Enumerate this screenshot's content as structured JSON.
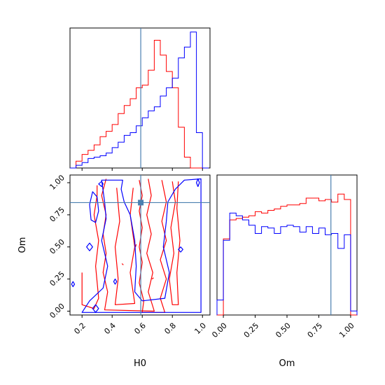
{
  "chart_data": {
    "type": "corner",
    "parameters": [
      "H0",
      "Om"
    ],
    "truths": {
      "H0": 0.59,
      "Om": 0.845
    },
    "truth_color": "#4a7fb0",
    "series": [
      {
        "color": "#ff0000"
      },
      {
        "color": "#0000ff"
      }
    ],
    "panels": [
      {
        "id": "hist-H0",
        "type": "step-histogram",
        "parameter": "H0",
        "xlim": [
          0.12,
          1.05
        ],
        "ylim": [
          0,
          1.03
        ],
        "x_edges": [
          0.12,
          0.16,
          0.2,
          0.24,
          0.28,
          0.32,
          0.36,
          0.4,
          0.44,
          0.48,
          0.52,
          0.56,
          0.6,
          0.64,
          0.68,
          0.72,
          0.76,
          0.8,
          0.84,
          0.88,
          0.92,
          0.96,
          1.0,
          1.04
        ],
        "series_values": [
          [
            0.0,
            0.05,
            0.1,
            0.13,
            0.17,
            0.23,
            0.27,
            0.32,
            0.4,
            0.46,
            0.51,
            0.59,
            0.61,
            0.72,
            0.94,
            0.83,
            0.71,
            0.59,
            0.3,
            0.08,
            0.0,
            0.0,
            0.0
          ],
          [
            0.0,
            0.02,
            0.04,
            0.07,
            0.08,
            0.09,
            0.11,
            0.15,
            0.19,
            0.24,
            0.26,
            0.31,
            0.37,
            0.42,
            0.45,
            0.53,
            0.59,
            0.66,
            0.81,
            0.89,
            1.0,
            0.26,
            0.0
          ]
        ],
        "truth_x": 0.59,
        "xticks": [
          0.2,
          0.4,
          0.6,
          0.8,
          1.0
        ]
      },
      {
        "id": "hist-Om",
        "type": "step-histogram",
        "parameter": "Om",
        "xlabel": "Om",
        "xlim": [
          -0.05,
          1.05
        ],
        "ylim": [
          0,
          1.03
        ],
        "x_edges": [
          -0.05,
          0.0,
          0.05,
          0.1,
          0.15,
          0.2,
          0.25,
          0.3,
          0.35,
          0.4,
          0.45,
          0.5,
          0.55,
          0.6,
          0.65,
          0.7,
          0.75,
          0.8,
          0.85,
          0.9,
          0.95,
          1.0,
          1.05
        ],
        "series_values": [
          [
            0.0,
            0.56,
            0.7,
            0.71,
            0.72,
            0.73,
            0.76,
            0.75,
            0.77,
            0.78,
            0.8,
            0.81,
            0.81,
            0.82,
            0.86,
            0.86,
            0.84,
            0.85,
            0.83,
            0.89,
            0.85,
            0.0
          ],
          [
            0.11,
            0.55,
            0.75,
            0.73,
            0.7,
            0.66,
            0.6,
            0.65,
            0.64,
            0.6,
            0.65,
            0.66,
            0.65,
            0.61,
            0.65,
            0.6,
            0.64,
            0.59,
            0.6,
            0.49,
            0.59,
            0.03
          ]
        ],
        "truth_x": 0.845,
        "xticks": [
          0.0,
          0.25,
          0.5,
          0.75,
          1.0
        ],
        "xtick_labels": [
          "0.00",
          "0.25",
          "0.50",
          "0.75",
          "1.00"
        ]
      },
      {
        "id": "contour-H0-Om",
        "type": "contour",
        "xlabel": "H0",
        "ylabel": "Om",
        "xlim": [
          0.12,
          1.05
        ],
        "ylim": [
          -0.03,
          1.06
        ],
        "xticks": [
          0.2,
          0.4,
          0.6,
          0.8,
          1.0
        ],
        "xtick_labels": [
          "0.2",
          "0.4",
          "0.6",
          "0.8",
          "1.0"
        ],
        "yticks": [
          0.0,
          0.25,
          0.5,
          0.75,
          1.0
        ],
        "ytick_labels": [
          "0.00",
          "0.25",
          "0.50",
          "0.75",
          "1.00"
        ],
        "truth_point": [
          0.59,
          0.845
        ],
        "series_contours": [
          [
            [
              [
                0.36,
                1.03
              ],
              [
                0.33,
                0.9
              ],
              [
                0.36,
                0.75
              ],
              [
                0.34,
                0.6
              ],
              [
                0.36,
                0.45
              ],
              [
                0.34,
                0.3
              ],
              [
                0.37,
                0.15
              ],
              [
                0.35,
                0.01
              ],
              [
                0.68,
                0.0
              ],
              [
                0.64,
                0.15
              ],
              [
                0.67,
                0.3
              ],
              [
                0.63,
                0.45
              ],
              [
                0.66,
                0.6
              ],
              [
                0.63,
                0.75
              ],
              [
                0.66,
                0.9
              ],
              [
                0.64,
                1.03
              ]
            ],
            [
              [
                0.58,
                1.02
              ],
              [
                0.6,
                0.9
              ],
              [
                0.58,
                0.78
              ],
              [
                0.6,
                0.65
              ],
              [
                0.58,
                0.5
              ],
              [
                0.6,
                0.38
              ],
              [
                0.58,
                0.22
              ],
              [
                0.61,
                0.08
              ],
              [
                0.6,
                -0.01
              ],
              [
                0.75,
                -0.01
              ],
              [
                0.72,
                0.1
              ],
              [
                0.76,
                0.25
              ],
              [
                0.72,
                0.4
              ],
              [
                0.76,
                0.55
              ],
              [
                0.73,
                0.7
              ],
              [
                0.76,
                0.85
              ],
              [
                0.73,
                1.02
              ]
            ],
            [
              [
                0.3,
                0.98
              ],
              [
                0.3,
                0.9
              ],
              [
                0.28,
                0.75
              ],
              [
                0.31,
                0.55
              ],
              [
                0.29,
                0.35
              ],
              [
                0.31,
                0.1
              ],
              [
                0.28,
                0.02
              ],
              [
                0.2,
                0.05
              ],
              [
                0.2,
                0.3
              ]
            ],
            [
              [
                0.43,
                0.96
              ],
              [
                0.45,
                0.7
              ],
              [
                0.42,
                0.5
              ],
              [
                0.44,
                0.25
              ],
              [
                0.42,
                0.05
              ],
              [
                0.55,
                0.06
              ],
              [
                0.52,
                0.3
              ],
              [
                0.55,
                0.5
              ],
              [
                0.52,
                0.75
              ],
              [
                0.54,
                0.96
              ]
            ],
            [
              [
                0.8,
                1.01
              ],
              [
                0.82,
                0.85
              ],
              [
                0.79,
                0.65
              ],
              [
                0.81,
                0.45
              ],
              [
                0.78,
                0.25
              ],
              [
                0.8,
                0.05
              ],
              [
                0.84,
                0.05
              ],
              [
                0.83,
                0.3
              ],
              [
                0.85,
                0.55
              ],
              [
                0.83,
                0.8
              ],
              [
                0.84,
                1.01
              ]
            ],
            [
              [
                0.465,
                0.37
              ],
              [
                0.475,
                0.36
              ]
            ],
            [
              [
                0.555,
                0.5
              ],
              [
                0.56,
                0.52
              ]
            ],
            [
              [
                0.665,
                0.25
              ],
              [
                0.675,
                0.26
              ]
            ]
          ],
          [
            [
              [
                0.99,
                1.03
              ],
              [
                0.99,
                -0.01
              ],
              [
                0.2,
                -0.01
              ],
              [
                0.25,
                0.08
              ],
              [
                0.34,
                0.18
              ],
              [
                0.37,
                0.35
              ],
              [
                0.33,
                0.55
              ],
              [
                0.36,
                0.72
              ],
              [
                0.35,
                0.85
              ],
              [
                0.33,
                1.02
              ],
              [
                0.47,
                1.02
              ],
              [
                0.46,
                0.95
              ],
              [
                0.48,
                0.85
              ],
              [
                0.52,
                0.75
              ],
              [
                0.55,
                0.55
              ],
              [
                0.56,
                0.35
              ],
              [
                0.55,
                0.15
              ],
              [
                0.6,
                0.08
              ],
              [
                0.75,
                0.1
              ],
              [
                0.78,
                0.3
              ],
              [
                0.74,
                0.5
              ],
              [
                0.76,
                0.7
              ],
              [
                0.77,
                0.85
              ],
              [
                0.82,
                0.95
              ],
              [
                0.88,
                1.02
              ],
              [
                0.99,
                1.03
              ]
            ],
            [
              [
                0.27,
                0.93
              ],
              [
                0.3,
                0.89
              ],
              [
                0.31,
                0.78
              ],
              [
                0.29,
                0.69
              ],
              [
                0.26,
                0.71
              ],
              [
                0.25,
                0.83
              ],
              [
                0.27,
                0.93
              ]
            ],
            [
              [
                0.13,
                0.21
              ],
              [
                0.14,
                0.23
              ],
              [
                0.15,
                0.21
              ],
              [
                0.14,
                0.19
              ],
              [
                0.13,
                0.21
              ]
            ],
            [
              [
                0.23,
                0.5
              ],
              [
                0.25,
                0.53
              ],
              [
                0.27,
                0.5
              ],
              [
                0.25,
                0.47
              ],
              [
                0.23,
                0.5
              ]
            ],
            [
              [
                0.31,
                0.99
              ],
              [
                0.33,
                1.01
              ],
              [
                0.34,
                0.99
              ],
              [
                0.33,
                0.97
              ],
              [
                0.31,
                0.99
              ]
            ],
            [
              [
                0.84,
                0.48
              ],
              [
                0.855,
                0.5
              ],
              [
                0.87,
                0.48
              ],
              [
                0.855,
                0.46
              ],
              [
                0.84,
                0.48
              ]
            ],
            [
              [
                0.27,
                0.02
              ],
              [
                0.29,
                0.05
              ],
              [
                0.31,
                0.02
              ],
              [
                0.29,
                -0.01
              ],
              [
                0.27,
                0.02
              ]
            ],
            [
              [
                0.41,
                0.23
              ],
              [
                0.42,
                0.25
              ],
              [
                0.43,
                0.23
              ],
              [
                0.42,
                0.21
              ],
              [
                0.41,
                0.23
              ]
            ],
            [
              [
                0.96,
                1.0
              ],
              [
                0.97,
                1.03
              ],
              [
                0.98,
                1.0
              ],
              [
                0.97,
                0.97
              ],
              [
                0.96,
                1.0
              ]
            ]
          ]
        ]
      }
    ]
  }
}
